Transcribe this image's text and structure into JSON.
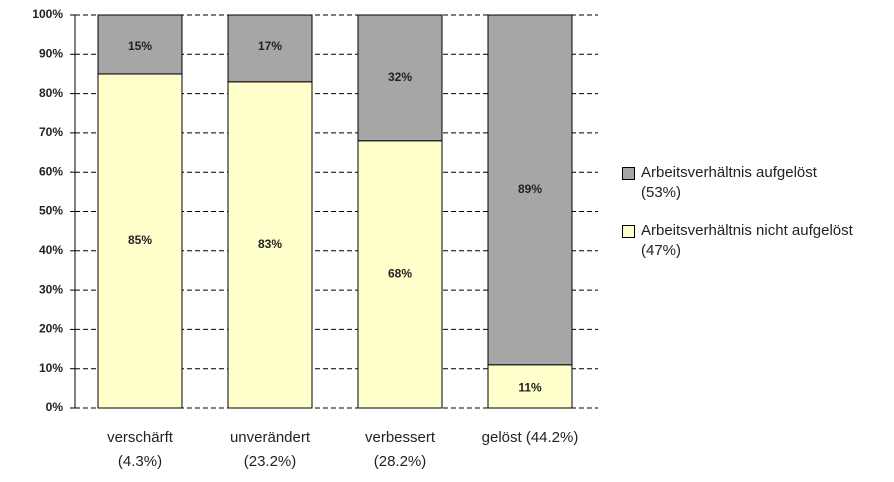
{
  "chart_data": {
    "type": "stacked_bar",
    "categories": [
      "verschärft (4.3%)",
      "unverändert (23.2%)",
      "verbessert (28.2%)",
      "gelöst (44.2%)"
    ],
    "series": [
      {
        "name": "Arbeitsverhältnis nicht aufgelöst (47%)",
        "color": "#ffffcc",
        "values": [
          85,
          83,
          68,
          11
        ],
        "value_labels": [
          "85%",
          "83%",
          "68%",
          "11%"
        ]
      },
      {
        "name": "Arbeitsverhältnis aufgelöst (53%)",
        "color": "#a6a6a6",
        "values": [
          15,
          17,
          32,
          89
        ],
        "value_labels": [
          "15%",
          "17%",
          "32%",
          "89%"
        ]
      }
    ],
    "ylim": [
      0,
      100
    ],
    "yticks": [
      {
        "value": 0,
        "label": "0%"
      },
      {
        "value": 10,
        "label": "10%"
      },
      {
        "value": 20,
        "label": "20%"
      },
      {
        "value": 30,
        "label": "30%"
      },
      {
        "value": 40,
        "label": "40%"
      },
      {
        "value": 50,
        "label": "50%"
      },
      {
        "value": 60,
        "label": "60%"
      },
      {
        "value": 70,
        "label": "70%"
      },
      {
        "value": 80,
        "label": "80%"
      },
      {
        "value": 90,
        "label": "90%"
      },
      {
        "value": 100,
        "label": "100%"
      }
    ],
    "grid": true,
    "legend": "right"
  }
}
